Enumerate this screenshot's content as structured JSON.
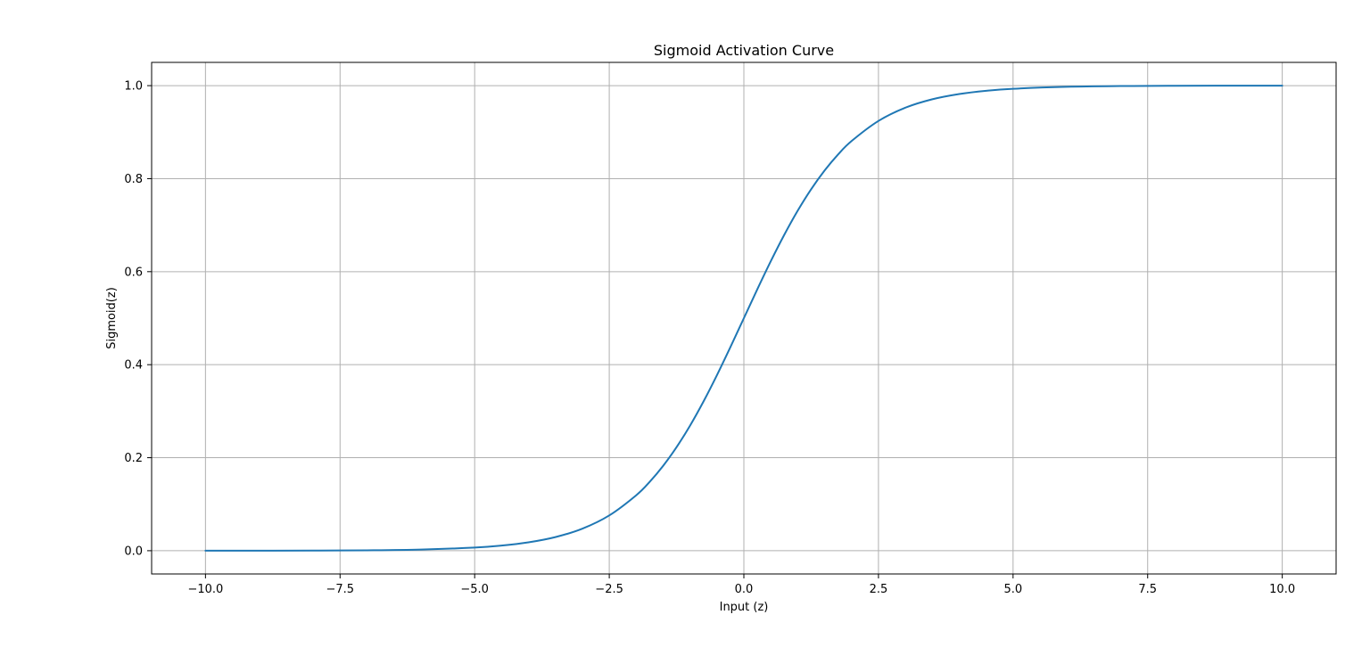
{
  "chart_data": {
    "type": "line",
    "title": "Sigmoid Activation Curve",
    "xlabel": "Input (z)",
    "ylabel": "Sigmoid(z)",
    "xlim": [
      -11,
      11
    ],
    "ylim": [
      -0.05,
      1.05
    ],
    "grid": true,
    "x_ticks": [
      -10.0,
      -7.5,
      -5.0,
      -2.5,
      0.0,
      2.5,
      5.0,
      7.5,
      10.0
    ],
    "x_tick_labels": [
      "−10.0",
      "−7.5",
      "−5.0",
      "−2.5",
      "0.0",
      "2.5",
      "5.0",
      "7.5",
      "10.0"
    ],
    "y_ticks": [
      0.0,
      0.2,
      0.4,
      0.6,
      0.8,
      1.0
    ],
    "y_tick_labels": [
      "0.0",
      "0.2",
      "0.4",
      "0.6",
      "0.8",
      "1.0"
    ],
    "series": [
      {
        "color": "#1f77b4",
        "x": [
          -10.0,
          -9.0,
          -8.0,
          -7.0,
          -6.0,
          -5.0,
          -4.5,
          -4.0,
          -3.5,
          -3.0,
          -2.5,
          -2.0,
          -1.75,
          -1.5,
          -1.25,
          -1.0,
          -0.75,
          -0.5,
          -0.25,
          0.0,
          0.25,
          0.5,
          0.75,
          1.0,
          1.25,
          1.5,
          1.75,
          2.0,
          2.5,
          3.0,
          3.5,
          4.0,
          4.5,
          5.0,
          6.0,
          7.0,
          8.0,
          9.0,
          10.0
        ],
        "y": [
          0.0,
          0.0001,
          0.0003,
          0.0009,
          0.0025,
          0.0067,
          0.011,
          0.018,
          0.0293,
          0.0474,
          0.0759,
          0.1192,
          0.148,
          0.1824,
          0.2227,
          0.2689,
          0.3208,
          0.3775,
          0.4378,
          0.5,
          0.5622,
          0.6225,
          0.6792,
          0.7311,
          0.7773,
          0.8176,
          0.852,
          0.8808,
          0.9241,
          0.9526,
          0.9707,
          0.982,
          0.989,
          0.9933,
          0.9975,
          0.9991,
          0.9997,
          0.9999,
          1.0
        ]
      }
    ]
  },
  "colors": {
    "line": "#1f77b4",
    "grid": "#b0b0b0",
    "axes": "#000000"
  }
}
